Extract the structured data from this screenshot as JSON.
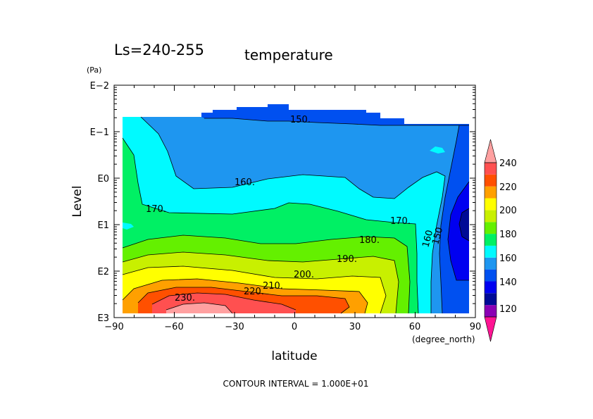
{
  "chart_data": {
    "type": "heatmap",
    "title_left": "Ls=240-255",
    "title_right": "temperature",
    "xlabel": "latitude",
    "x_unit": "(degree_north)",
    "ylabel": "Level",
    "y_unit": "(Pa)",
    "x_range": [
      -90,
      90
    ],
    "x_ticks": [
      "−90",
      "−60",
      "−30",
      "0",
      "30",
      "60",
      "90"
    ],
    "y_scale": "log",
    "y_ticks": [
      "E−2",
      "E−1",
      "E0",
      "E1",
      "E2",
      "E3"
    ],
    "footer": "CONTOUR INTERVAL = 1.000E+01",
    "colorbar": {
      "tick_labels": [
        "120",
        "140",
        "160",
        "180",
        "200",
        "220",
        "240"
      ],
      "bins": [
        {
          "range": [
            100,
            110
          ],
          "color": "#ff1493"
        },
        {
          "range": [
            110,
            120
          ],
          "color": "#8b00b4"
        },
        {
          "range": [
            120,
            130
          ],
          "color": "#000a96"
        },
        {
          "range": [
            130,
            140
          ],
          "color": "#0000f0"
        },
        {
          "range": [
            140,
            150
          ],
          "color": "#0050f0"
        },
        {
          "range": [
            150,
            160
          ],
          "color": "#1e96f0"
        },
        {
          "range": [
            160,
            170
          ],
          "color": "#00faff"
        },
        {
          "range": [
            170,
            180
          ],
          "color": "#00f064"
        },
        {
          "range": [
            180,
            190
          ],
          "color": "#64f000"
        },
        {
          "range": [
            190,
            200
          ],
          "color": "#c8f000"
        },
        {
          "range": [
            200,
            210
          ],
          "color": "#ffff00"
        },
        {
          "range": [
            210,
            220
          ],
          "color": "#ffa000"
        },
        {
          "range": [
            220,
            230
          ],
          "color": "#ff5000"
        },
        {
          "range": [
            230,
            240
          ],
          "color": "#ff5050"
        },
        {
          "range": [
            240,
            250
          ],
          "color": "#ffa0a0"
        }
      ]
    },
    "contour_labels": [
      "150.",
      "160.",
      "170.",
      "170.",
      "180.",
      "190.",
      "200.",
      "210.",
      "220.",
      "230.",
      "160",
      "150"
    ]
  }
}
